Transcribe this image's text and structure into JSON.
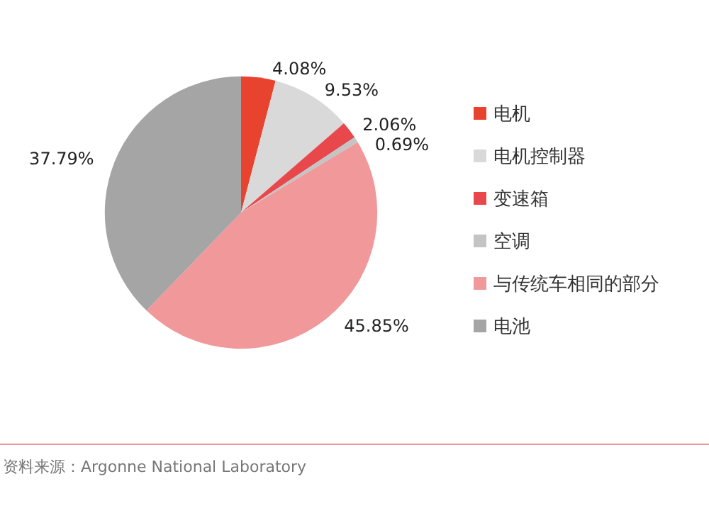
{
  "chart_data": {
    "type": "pie",
    "categories": [
      "电机",
      "电机控制器",
      "变速箱",
      "空调",
      "与传统车相同的部分",
      "电池"
    ],
    "values": [
      4.08,
      9.53,
      2.06,
      0.69,
      45.85,
      37.79
    ],
    "colors": [
      "#e8432e",
      "#d9d9d9",
      "#e8484c",
      "#c4c4c4",
      "#f0989a",
      "#a5a5a5"
    ],
    "value_labels": [
      "4.08%",
      "9.53%",
      "2.06%",
      "0.69%",
      "45.85%",
      "37.79%"
    ],
    "legend": "right",
    "annotations": [
      "资料来源：Argonne National Laboratory"
    ]
  }
}
